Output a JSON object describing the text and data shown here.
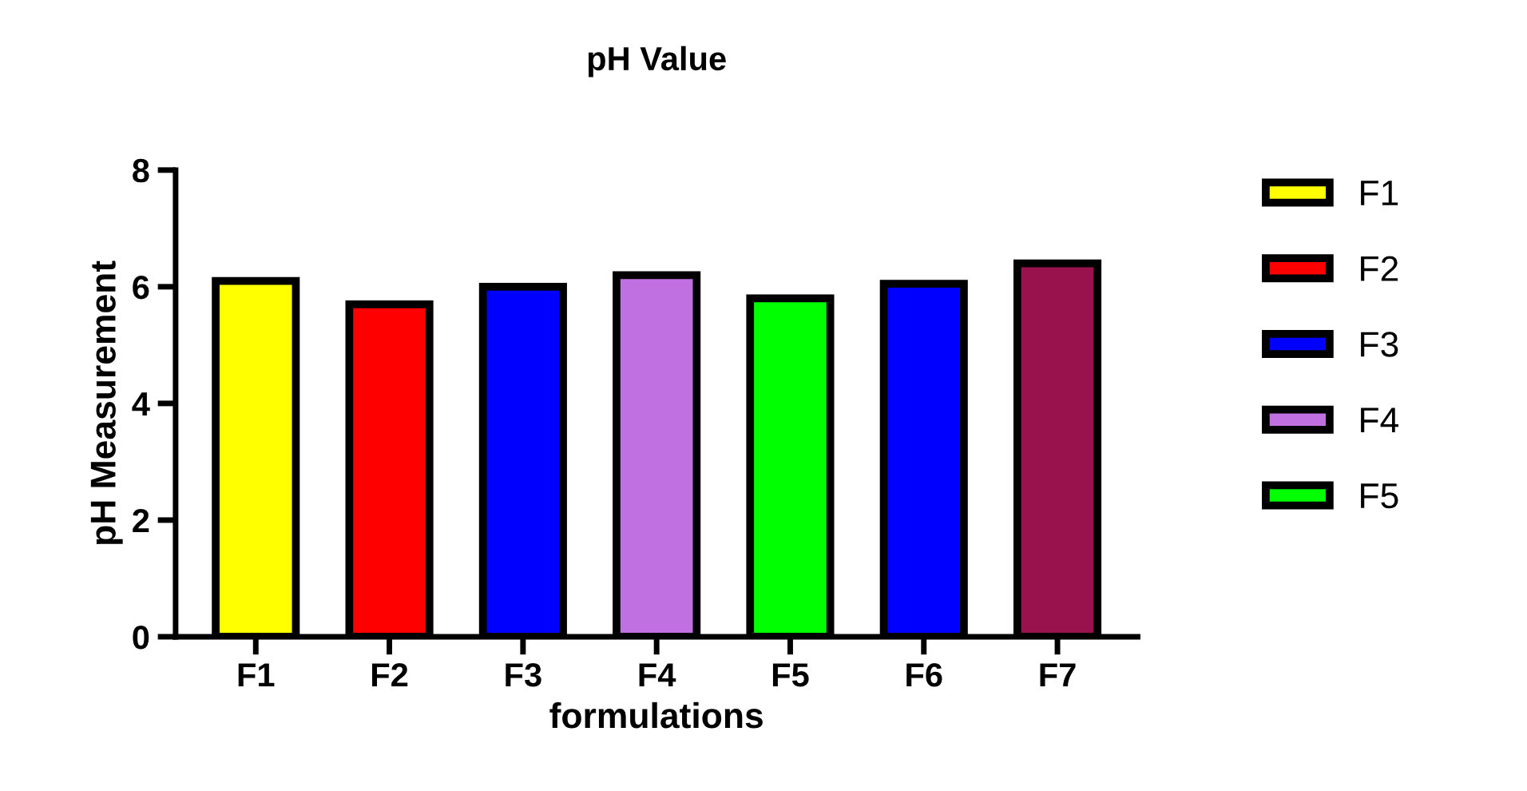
{
  "chart_data": {
    "type": "bar",
    "title": "pH Value",
    "xlabel": "formulations",
    "ylabel": "pH Measurement",
    "categories": [
      "F1",
      "F2",
      "F3",
      "F4",
      "F5",
      "F6",
      "F7"
    ],
    "stacked": true,
    "series": [
      {
        "name": "F1",
        "color": "#ffff00",
        "values": [
          6.1,
          null,
          null,
          null,
          null,
          null,
          null
        ]
      },
      {
        "name": "F2",
        "color": "#ff0000",
        "values": [
          null,
          5.7,
          null,
          null,
          null,
          null,
          null
        ]
      },
      {
        "name": "F3",
        "color": "#0000ff",
        "values": [
          null,
          null,
          6.0,
          null,
          null,
          null,
          null
        ]
      },
      {
        "name": "F4",
        "color": "#c070e0",
        "values": [
          null,
          null,
          null,
          6.2,
          null,
          null,
          null
        ]
      },
      {
        "name": "F5",
        "color": "#00ff00",
        "values": [
          null,
          null,
          null,
          null,
          5.8,
          null,
          null
        ]
      },
      {
        "color": "#0000ff",
        "values": [
          null,
          null,
          null,
          null,
          null,
          6.05,
          null
        ]
      },
      {
        "color": "#99114d",
        "values": [
          null,
          null,
          null,
          null,
          null,
          null,
          6.4
        ]
      }
    ],
    "ylim": [
      0,
      8
    ],
    "yticks": [
      0,
      2,
      4,
      6,
      8
    ],
    "grid": false,
    "legend": "right"
  }
}
